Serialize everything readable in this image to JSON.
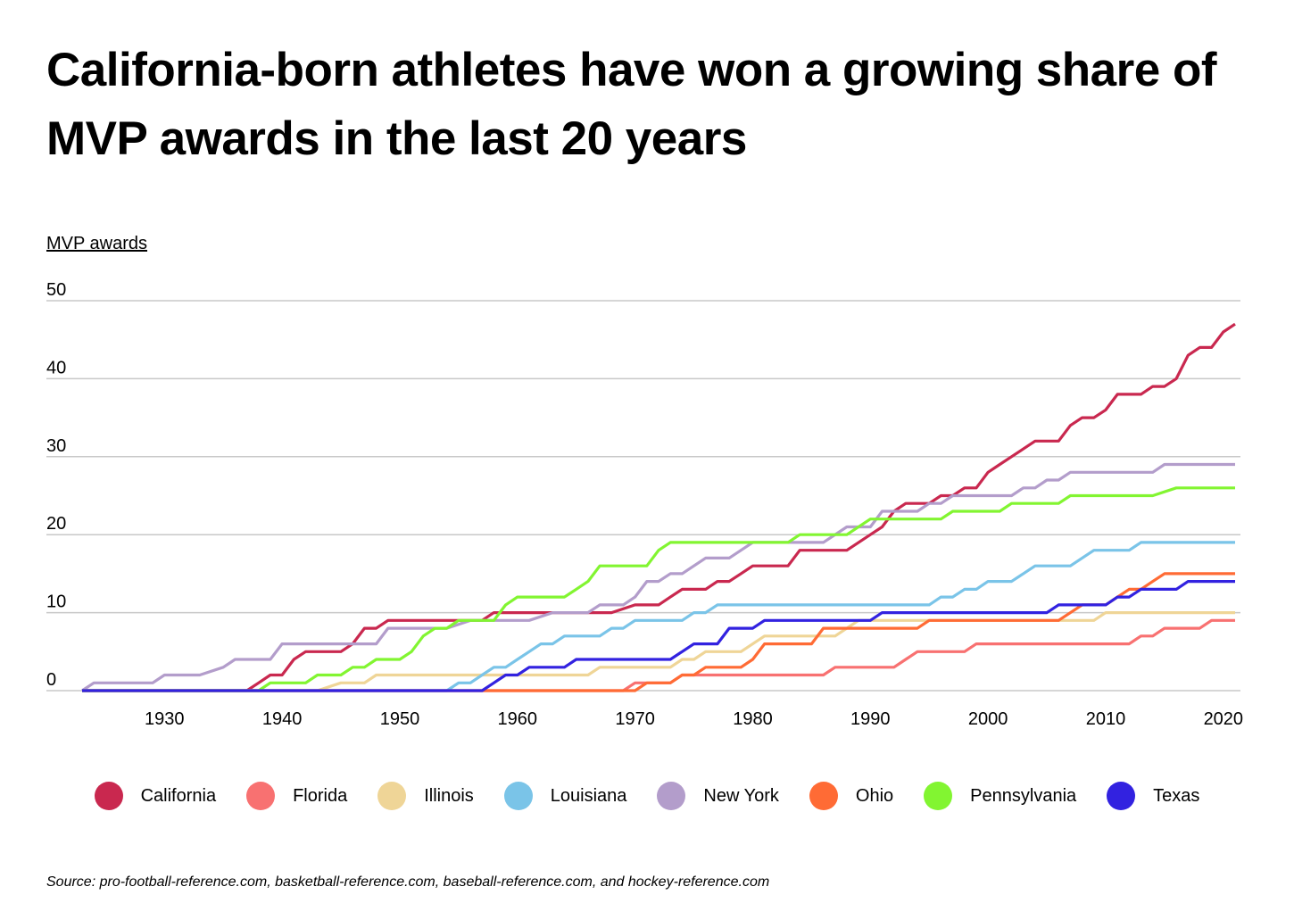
{
  "title": "California-born athletes have won a growing share of MVP awards in the last 20 years",
  "source": "Source:  pro-football-reference.com, basketball-reference.com, baseball-reference.com, and hockey-reference.com",
  "chart_data": {
    "type": "line",
    "title": "California-born athletes have won a growing share of MVP awards in the last 20 years",
    "ylabel": "MVP awards",
    "xlabel": "",
    "xlim": [
      1923,
      2021
    ],
    "ylim": [
      0,
      50
    ],
    "yticks": [
      0,
      10,
      20,
      30,
      40,
      50
    ],
    "xticks": [
      1930,
      1940,
      1950,
      1960,
      1970,
      1980,
      1990,
      2000,
      2010,
      2020
    ],
    "grid": true,
    "legend": "bottom",
    "series": [
      {
        "name": "California",
        "color": "#C9284F",
        "points": [
          [
            1923,
            0
          ],
          [
            1937,
            0
          ],
          [
            1938,
            1
          ],
          [
            1939,
            2
          ],
          [
            1940,
            2
          ],
          [
            1941,
            4
          ],
          [
            1942,
            5
          ],
          [
            1945,
            5
          ],
          [
            1946,
            6
          ],
          [
            1947,
            8
          ],
          [
            1948,
            8
          ],
          [
            1949,
            9
          ],
          [
            1957,
            9
          ],
          [
            1958,
            10
          ],
          [
            1968,
            10
          ],
          [
            1970,
            11
          ],
          [
            1972,
            11
          ],
          [
            1973,
            12
          ],
          [
            1974,
            13
          ],
          [
            1976,
            13
          ],
          [
            1977,
            14
          ],
          [
            1978,
            14
          ],
          [
            1979,
            15
          ],
          [
            1980,
            16
          ],
          [
            1983,
            16
          ],
          [
            1984,
            18
          ],
          [
            1988,
            18
          ],
          [
            1989,
            19
          ],
          [
            1990,
            20
          ],
          [
            1991,
            21
          ],
          [
            1992,
            23
          ],
          [
            1993,
            24
          ],
          [
            1995,
            24
          ],
          [
            1996,
            25
          ],
          [
            1997,
            25
          ],
          [
            1998,
            26
          ],
          [
            1999,
            26
          ],
          [
            2000,
            28
          ],
          [
            2001,
            29
          ],
          [
            2002,
            30
          ],
          [
            2003,
            31
          ],
          [
            2004,
            32
          ],
          [
            2006,
            32
          ],
          [
            2007,
            34
          ],
          [
            2008,
            35
          ],
          [
            2009,
            35
          ],
          [
            2010,
            36
          ],
          [
            2011,
            38
          ],
          [
            2013,
            38
          ],
          [
            2014,
            39
          ],
          [
            2015,
            39
          ],
          [
            2016,
            40
          ],
          [
            2017,
            43
          ],
          [
            2018,
            44
          ],
          [
            2019,
            44
          ],
          [
            2020,
            46
          ],
          [
            2021,
            47
          ]
        ]
      },
      {
        "name": "Florida",
        "color": "#F87171",
        "points": [
          [
            1923,
            0
          ],
          [
            1969,
            0
          ],
          [
            1970,
            1
          ],
          [
            1973,
            1
          ],
          [
            1974,
            2
          ],
          [
            1986,
            2
          ],
          [
            1987,
            3
          ],
          [
            1992,
            3
          ],
          [
            1993,
            4
          ],
          [
            1994,
            5
          ],
          [
            1998,
            5
          ],
          [
            1999,
            6
          ],
          [
            2012,
            6
          ],
          [
            2013,
            7
          ],
          [
            2014,
            7
          ],
          [
            2015,
            8
          ],
          [
            2018,
            8
          ],
          [
            2019,
            9
          ],
          [
            2021,
            9
          ]
        ]
      },
      {
        "name": "Illinois",
        "color": "#EFD597",
        "points": [
          [
            1923,
            0
          ],
          [
            1943,
            0
          ],
          [
            1945,
            1
          ],
          [
            1947,
            1
          ],
          [
            1948,
            2
          ],
          [
            1966,
            2
          ],
          [
            1967,
            3
          ],
          [
            1973,
            3
          ],
          [
            1974,
            4
          ],
          [
            1975,
            4
          ],
          [
            1976,
            5
          ],
          [
            1979,
            5
          ],
          [
            1980,
            6
          ],
          [
            1981,
            7
          ],
          [
            1987,
            7
          ],
          [
            1988,
            8
          ],
          [
            1989,
            9
          ],
          [
            2009,
            9
          ],
          [
            2010,
            10
          ],
          [
            2021,
            10
          ]
        ]
      },
      {
        "name": "Louisiana",
        "color": "#7AC4E8",
        "points": [
          [
            1923,
            0
          ],
          [
            1954,
            0
          ],
          [
            1955,
            1
          ],
          [
            1956,
            1
          ],
          [
            1957,
            2
          ],
          [
            1958,
            3
          ],
          [
            1959,
            3
          ],
          [
            1960,
            4
          ],
          [
            1961,
            5
          ],
          [
            1962,
            6
          ],
          [
            1963,
            6
          ],
          [
            1964,
            7
          ],
          [
            1967,
            7
          ],
          [
            1968,
            8
          ],
          [
            1969,
            8
          ],
          [
            1970,
            9
          ],
          [
            1974,
            9
          ],
          [
            1975,
            10
          ],
          [
            1976,
            10
          ],
          [
            1977,
            11
          ],
          [
            1995,
            11
          ],
          [
            1996,
            12
          ],
          [
            1997,
            12
          ],
          [
            1998,
            13
          ],
          [
            1999,
            13
          ],
          [
            2000,
            14
          ],
          [
            2002,
            14
          ],
          [
            2003,
            15
          ],
          [
            2004,
            16
          ],
          [
            2007,
            16
          ],
          [
            2008,
            17
          ],
          [
            2009,
            18
          ],
          [
            2012,
            18
          ],
          [
            2013,
            19
          ],
          [
            2021,
            19
          ]
        ]
      },
      {
        "name": "New York",
        "color": "#B39DCB",
        "points": [
          [
            1923,
            0
          ],
          [
            1924,
            1
          ],
          [
            1929,
            1
          ],
          [
            1930,
            2
          ],
          [
            1933,
            2
          ],
          [
            1935,
            3
          ],
          [
            1936,
            4
          ],
          [
            1939,
            4
          ],
          [
            1940,
            6
          ],
          [
            1948,
            6
          ],
          [
            1949,
            8
          ],
          [
            1954,
            8
          ],
          [
            1956,
            9
          ],
          [
            1961,
            9
          ],
          [
            1963,
            10
          ],
          [
            1966,
            10
          ],
          [
            1967,
            11
          ],
          [
            1969,
            11
          ],
          [
            1970,
            12
          ],
          [
            1971,
            14
          ],
          [
            1972,
            14
          ],
          [
            1973,
            15
          ],
          [
            1974,
            15
          ],
          [
            1976,
            17
          ],
          [
            1978,
            17
          ],
          [
            1979,
            18
          ],
          [
            1980,
            19
          ],
          [
            1986,
            19
          ],
          [
            1988,
            21
          ],
          [
            1990,
            21
          ],
          [
            1991,
            23
          ],
          [
            1994,
            23
          ],
          [
            1995,
            24
          ],
          [
            1996,
            24
          ],
          [
            1997,
            25
          ],
          [
            2002,
            25
          ],
          [
            2003,
            26
          ],
          [
            2004,
            26
          ],
          [
            2005,
            27
          ],
          [
            2006,
            27
          ],
          [
            2007,
            28
          ],
          [
            2014,
            28
          ],
          [
            2015,
            29
          ],
          [
            2021,
            29
          ]
        ]
      },
      {
        "name": "Ohio",
        "color": "#FF6B35",
        "points": [
          [
            1923,
            0
          ],
          [
            1970,
            0
          ],
          [
            1971,
            1
          ],
          [
            1973,
            1
          ],
          [
            1974,
            2
          ],
          [
            1975,
            2
          ],
          [
            1976,
            3
          ],
          [
            1979,
            3
          ],
          [
            1980,
            4
          ],
          [
            1981,
            6
          ],
          [
            1985,
            6
          ],
          [
            1986,
            8
          ],
          [
            1994,
            8
          ],
          [
            1995,
            9
          ],
          [
            2006,
            9
          ],
          [
            2008,
            11
          ],
          [
            2010,
            11
          ],
          [
            2011,
            12
          ],
          [
            2012,
            13
          ],
          [
            2013,
            13
          ],
          [
            2014,
            14
          ],
          [
            2015,
            15
          ],
          [
            2021,
            15
          ]
        ]
      },
      {
        "name": "Pennsylvania",
        "color": "#82F531",
        "points": [
          [
            1923,
            0
          ],
          [
            1938,
            0
          ],
          [
            1939,
            1
          ],
          [
            1942,
            1
          ],
          [
            1943,
            2
          ],
          [
            1945,
            2
          ],
          [
            1946,
            3
          ],
          [
            1947,
            3
          ],
          [
            1948,
            4
          ],
          [
            1950,
            4
          ],
          [
            1951,
            5
          ],
          [
            1952,
            7
          ],
          [
            1953,
            8
          ],
          [
            1954,
            8
          ],
          [
            1955,
            9
          ],
          [
            1958,
            9
          ],
          [
            1959,
            11
          ],
          [
            1960,
            12
          ],
          [
            1964,
            12
          ],
          [
            1965,
            13
          ],
          [
            1966,
            14
          ],
          [
            1967,
            16
          ],
          [
            1971,
            16
          ],
          [
            1972,
            18
          ],
          [
            1973,
            19
          ],
          [
            1983,
            19
          ],
          [
            1984,
            20
          ],
          [
            1988,
            20
          ],
          [
            1990,
            22
          ],
          [
            1996,
            22
          ],
          [
            1997,
            23
          ],
          [
            2001,
            23
          ],
          [
            2002,
            24
          ],
          [
            2006,
            24
          ],
          [
            2007,
            25
          ],
          [
            2014,
            25
          ],
          [
            2016,
            26
          ],
          [
            2021,
            26
          ]
        ]
      },
      {
        "name": "Texas",
        "color": "#3222E0",
        "points": [
          [
            1923,
            0
          ],
          [
            1957,
            0
          ],
          [
            1958,
            1
          ],
          [
            1959,
            2
          ],
          [
            1960,
            2
          ],
          [
            1961,
            3
          ],
          [
            1964,
            3
          ],
          [
            1965,
            4
          ],
          [
            1973,
            4
          ],
          [
            1974,
            5
          ],
          [
            1975,
            6
          ],
          [
            1977,
            6
          ],
          [
            1978,
            8
          ],
          [
            1980,
            8
          ],
          [
            1981,
            9
          ],
          [
            1990,
            9
          ],
          [
            1991,
            10
          ],
          [
            2005,
            10
          ],
          [
            2006,
            11
          ],
          [
            2010,
            11
          ],
          [
            2011,
            12
          ],
          [
            2012,
            12
          ],
          [
            2013,
            13
          ],
          [
            2016,
            13
          ],
          [
            2017,
            14
          ],
          [
            2021,
            14
          ]
        ]
      }
    ]
  }
}
